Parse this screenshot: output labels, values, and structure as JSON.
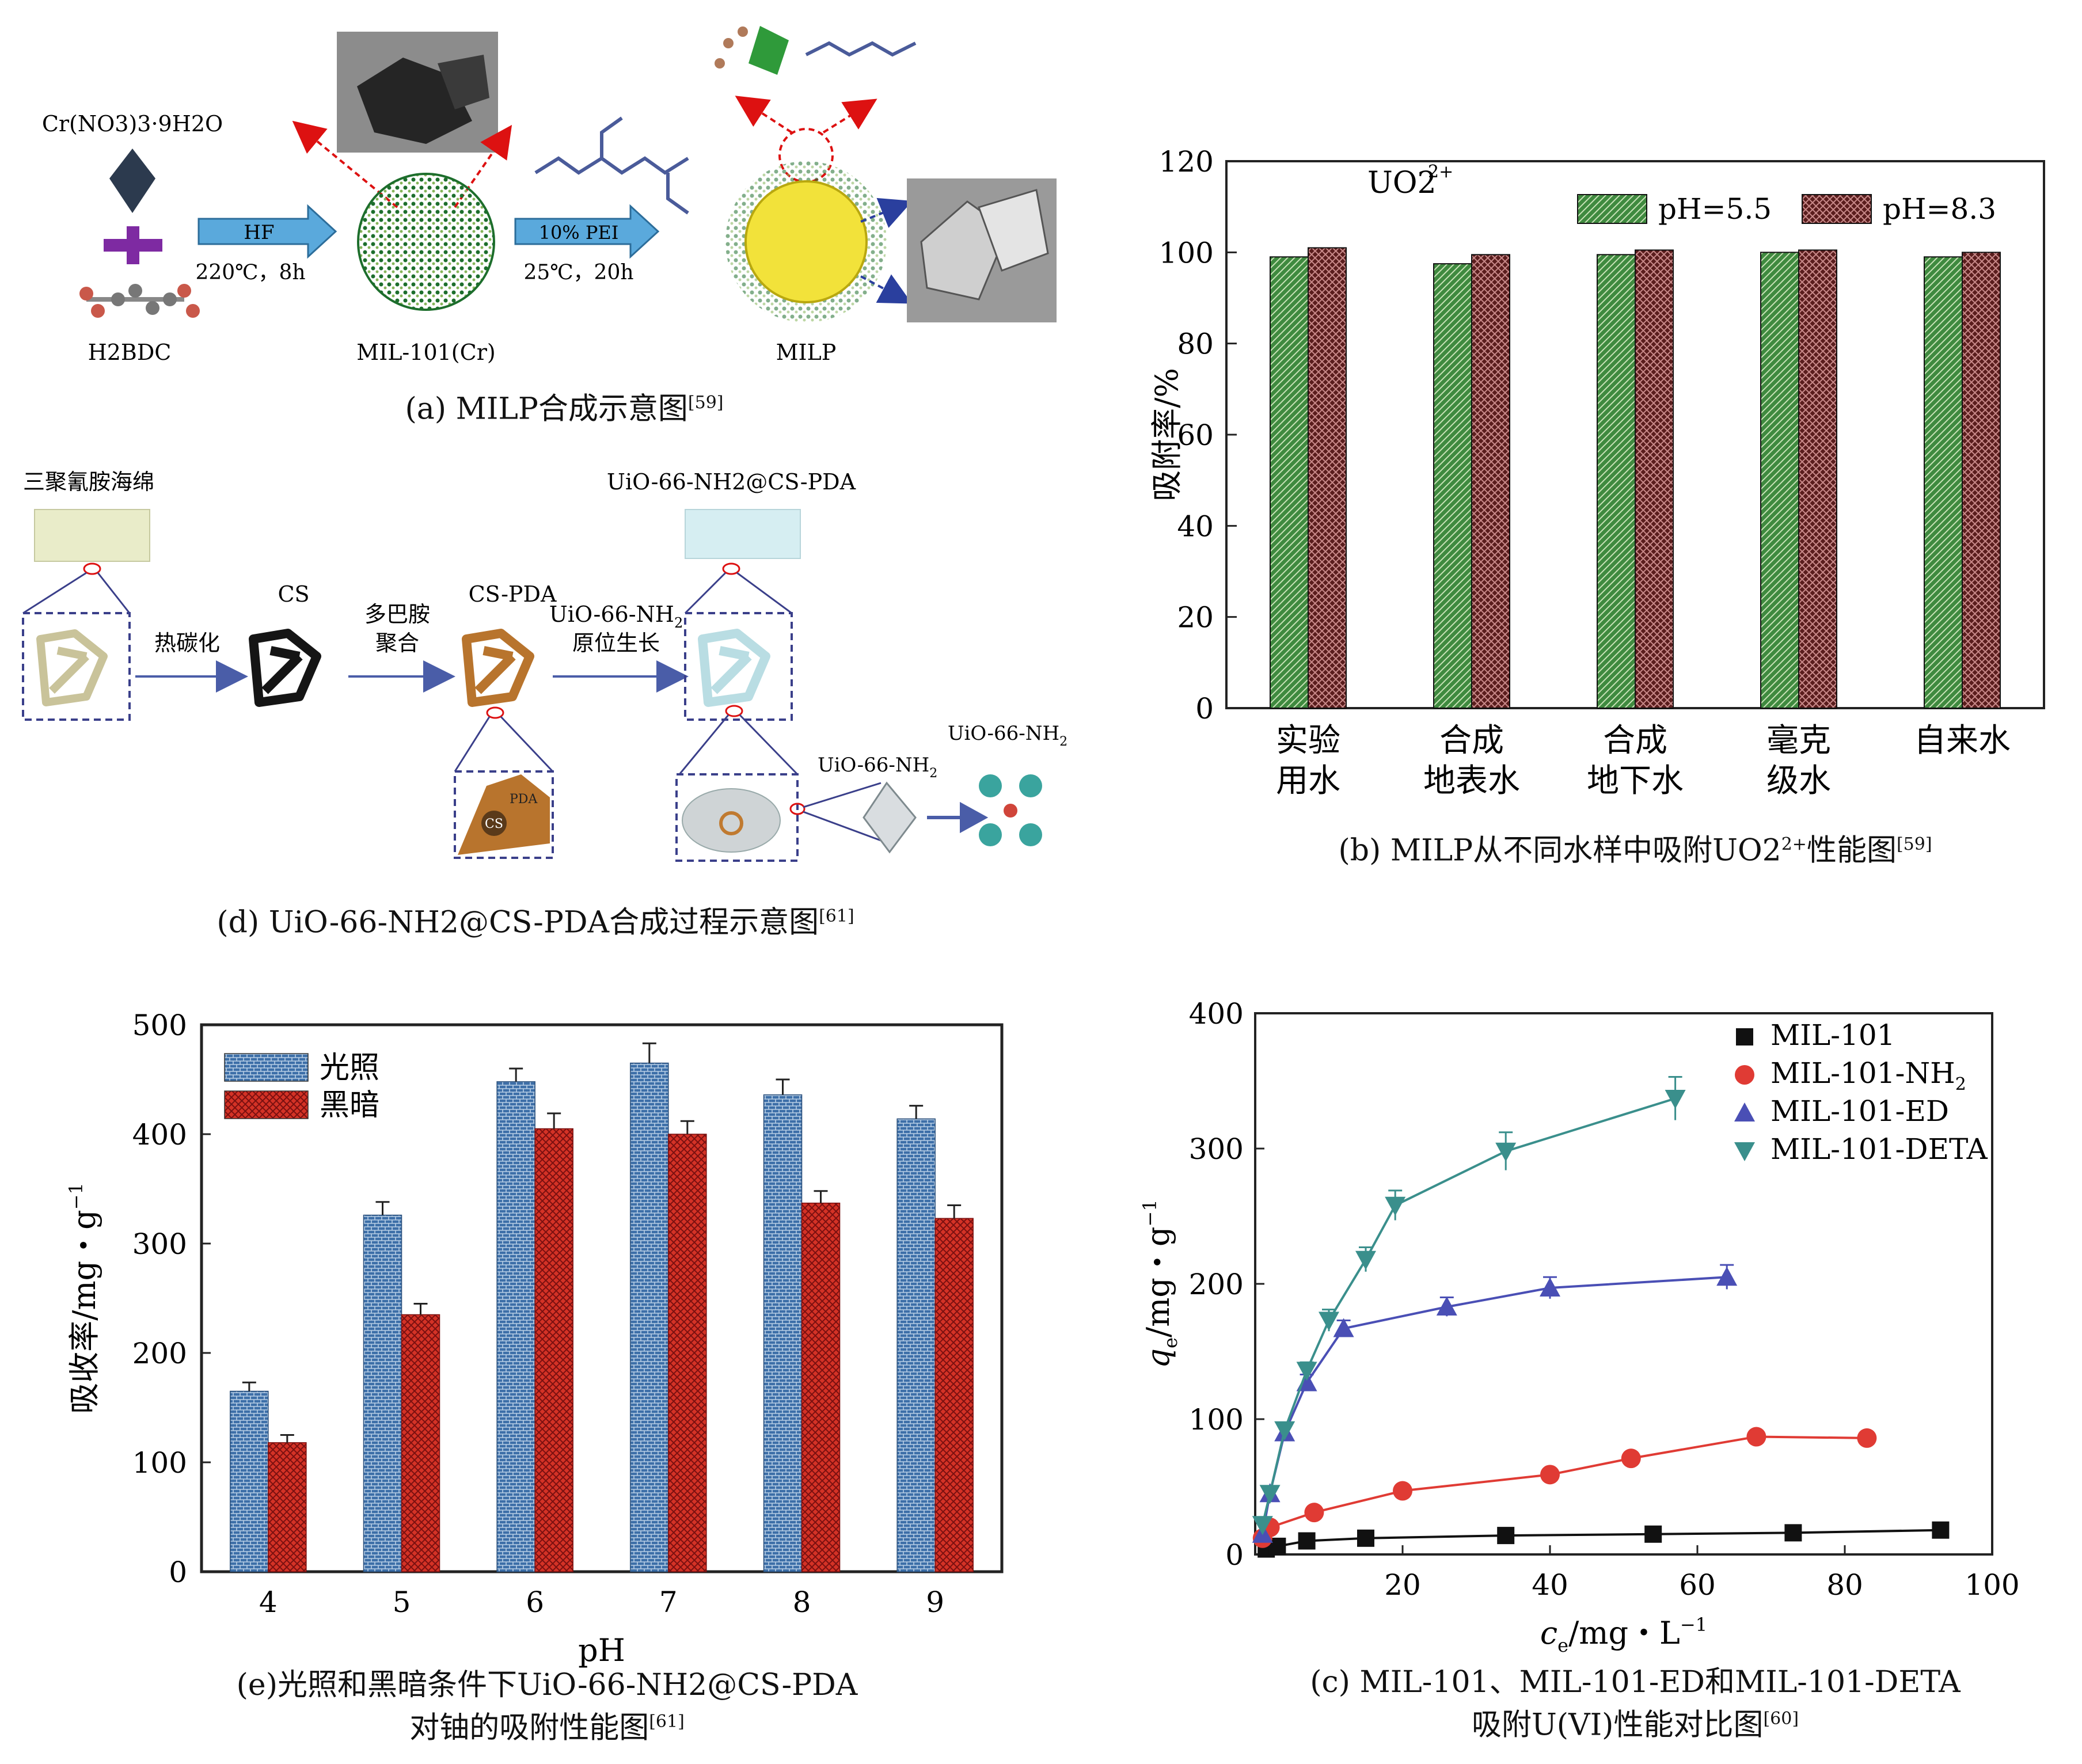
{
  "panel_a": {
    "reagent1": "Cr(NO3)3·9H2O",
    "reagent2": "H2BDC",
    "step1_arrow": "HF",
    "step1_cond": "220℃，8h",
    "mof": "MIL-101(Cr)",
    "step2_arrow": "10% PEI",
    "step2_cond": "25℃，20h",
    "product": "MILP",
    "caption": "(a) MILP合成示意图",
    "ref": "[59]"
  },
  "panel_d": {
    "sponge": "三聚氰胺海绵",
    "step1": "热碳化",
    "cs": "CS",
    "step2a": "多巴胺",
    "step2b": "聚合",
    "cspda": "CS-PDA",
    "step3a": "UiO-66-NH",
    "step3b": "原位生长",
    "product": "UiO-66-NH2@CS-PDA",
    "pda": "PDA",
    "cs_small": "CS",
    "uio_crystal": "UiO-66-NH",
    "uio_cluster": "UiO-66-NH",
    "caption": "(d) UiO-66-NH2@CS-PDA合成过程示意图",
    "ref": "[61]"
  },
  "panel_b": {
    "caption": "(b) MILP从不同水样中吸附UO2",
    "caption_tail": "性能图",
    "ref": "[59]",
    "colors": {
      "pH55": "#3f8a3f",
      "pH83": "#5a1d1d"
    }
  },
  "panel_e": {
    "caption_line1": "(e)光照和黑暗条件下UiO-66-NH2@CS-PDA",
    "caption_line2": "对铀的吸附性能图",
    "ref": "[61]",
    "colors": {
      "light": "#3d6fa8",
      "dark": "#d43226"
    }
  },
  "panel_c": {
    "caption_line1": "(c) MIL-101、MIL-101-ED和MIL-101-DETA",
    "caption_line2": "吸附U(VI)性能对比图",
    "ref": "[60]",
    "colors": {
      "MIL-101": "#111111",
      "MIL-101-NH2": "#e03b34",
      "MIL-101-ED": "#4a4fb5",
      "MIL-101-DETA": "#3a8f8c"
    }
  },
  "chart_data": [
    {
      "id": "b",
      "type": "bar",
      "annotation": "UO2",
      "annotation_sup": "2+",
      "categories": [
        "实验\n用水",
        "合成\n地表水",
        "合成\n地下水",
        "毫克\n级水",
        "自来水"
      ],
      "series": [
        {
          "name": "pH=5.5",
          "values": [
            99,
            97.5,
            99.5,
            100,
            99
          ]
        },
        {
          "name": "pH=8.3",
          "values": [
            101,
            99.5,
            100.5,
            100.5,
            100
          ]
        }
      ],
      "ylabel": "吸附率/%",
      "ylim": [
        0,
        120
      ],
      "yticks": [
        0,
        20,
        40,
        60,
        80,
        100,
        120
      ],
      "legend": "top-right"
    },
    {
      "id": "e",
      "type": "bar",
      "categories": [
        "4",
        "5",
        "6",
        "7",
        "8",
        "9"
      ],
      "series": [
        {
          "name": "光照",
          "values": [
            165,
            326,
            448,
            465,
            436,
            414
          ],
          "errors": [
            8,
            12,
            12,
            18,
            14,
            12
          ]
        },
        {
          "name": "黑暗",
          "values": [
            118,
            235,
            405,
            400,
            337,
            323
          ],
          "errors": [
            7,
            10,
            14,
            12,
            11,
            12
          ]
        }
      ],
      "xlabel": "pH",
      "ylabel": "吸收率/mg・g",
      "ylabel_sup": "−1",
      "ylim": [
        0,
        500
      ],
      "yticks": [
        0,
        100,
        200,
        300,
        400,
        500
      ],
      "legend": "top-left"
    },
    {
      "id": "c",
      "type": "scatter",
      "xlabel": "c",
      "xlabel_sub": "e",
      "xlabel_unit": "/mg・L",
      "xlabel_sup": "−1",
      "ylabel": "q",
      "ylabel_sub": "e",
      "ylabel_unit": "/mg・g",
      "ylabel_sup": "−1",
      "xlim": [
        0,
        100
      ],
      "ylim": [
        0,
        400
      ],
      "xticks": [
        20,
        40,
        60,
        80,
        100
      ],
      "yticks": [
        0,
        100,
        200,
        300,
        400
      ],
      "legend": "top-right",
      "series": [
        {
          "name": "MIL-101",
          "marker": "square",
          "x": [
            1.5,
            3,
            7,
            15,
            34,
            54,
            73,
            93
          ],
          "y": [
            4,
            6,
            10,
            12,
            14,
            15,
            16,
            18
          ]
        },
        {
          "name": "MIL-101-NH2",
          "marker": "circle",
          "x": [
            1,
            2,
            8,
            20,
            40,
            51,
            68,
            83
          ],
          "y": [
            12,
            20,
            31,
            47,
            59,
            71,
            87,
            86
          ]
        },
        {
          "name": "MIL-101-ED",
          "marker": "triangle-up",
          "x": [
            1,
            2,
            4,
            7,
            12,
            26,
            40,
            64
          ],
          "y": [
            15,
            45,
            90,
            127,
            167,
            183,
            197,
            205
          ],
          "err": [
            0,
            0,
            5,
            6,
            6,
            7,
            8,
            9
          ]
        },
        {
          "name": "MIL-101-DETA",
          "marker": "triangle-down",
          "x": [
            1,
            2,
            4,
            7,
            10,
            15,
            19,
            34,
            57
          ],
          "y": [
            22,
            45,
            92,
            136,
            173,
            218,
            258,
            298,
            337
          ],
          "err": [
            0,
            0,
            5,
            6,
            8,
            9,
            11,
            14,
            16
          ]
        }
      ]
    }
  ]
}
